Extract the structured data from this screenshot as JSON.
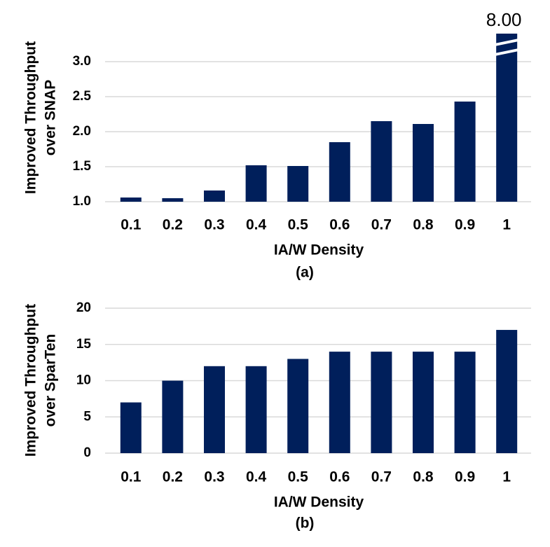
{
  "chart_data": [
    {
      "type": "bar",
      "ylabel": [
        "Improved Throughput",
        "over SNAP"
      ],
      "xlabel": "IA/W Density",
      "caption": "(a)",
      "categories": [
        "0.1",
        "0.2",
        "0.3",
        "0.4",
        "0.5",
        "0.6",
        "0.7",
        "0.8",
        "0.9",
        "1"
      ],
      "values": [
        1.06,
        1.05,
        1.16,
        1.52,
        1.51,
        1.85,
        2.15,
        2.11,
        2.43,
        8.0
      ],
      "value_labels": [
        null,
        null,
        null,
        null,
        null,
        null,
        null,
        null,
        null,
        "8.00"
      ],
      "color": "#001f5b",
      "ylim": [
        1,
        3.4
      ],
      "yticks": [
        {
          "value": 1,
          "label": "1.0"
        },
        1.5,
        {
          "value": 2,
          "label": "2.0"
        },
        2.5,
        {
          "value": 3,
          "label": "3.0"
        }
      ],
      "grid": true
    },
    {
      "type": "bar",
      "ylabel": [
        "Improved Throughput",
        "over SparTen"
      ],
      "xlabel": "IA/W Density",
      "caption": "(b)",
      "categories": [
        "0.1",
        "0.2",
        "0.3",
        "0.4",
        "0.5",
        "0.6",
        "0.7",
        "0.8",
        "0.9",
        "1"
      ],
      "values": [
        7,
        10,
        12,
        12,
        13,
        14,
        14,
        14,
        14,
        17
      ],
      "color": "#001f5b",
      "ylim": [
        0,
        20
      ],
      "yticks": [
        0,
        5,
        10,
        15,
        20
      ],
      "grid": true
    }
  ]
}
